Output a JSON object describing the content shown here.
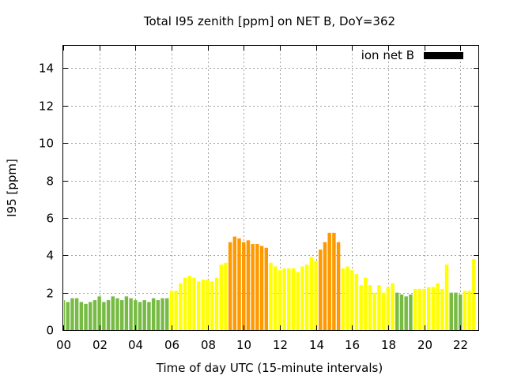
{
  "chart_data": {
    "type": "bar",
    "title": "Total I95 zenith [ppm] on NET B, DoY=362",
    "xlabel": "Time of day UTC (15-minute intervals)",
    "ylabel": "I95 [ppm]",
    "xlim": [
      0,
      23
    ],
    "ylim": [
      0,
      15.2
    ],
    "x_ticks": [
      "00",
      "02",
      "04",
      "06",
      "08",
      "10",
      "12",
      "14",
      "16",
      "18",
      "20",
      "22"
    ],
    "y_ticks": [
      "0",
      "2",
      "4",
      "6",
      "8",
      "10",
      "12",
      "14"
    ],
    "legend": {
      "label": "ion net B",
      "color": "#000000",
      "position": "top-right"
    },
    "grid": true,
    "bar_interval_hours": 0.25,
    "colors": {
      "green": "#77bb44",
      "yellow": "#ffff00",
      "orange": "#ff9900"
    },
    "series": [
      {
        "name": "ion net B",
        "values": [
          1.6,
          1.5,
          1.7,
          1.7,
          1.5,
          1.4,
          1.5,
          1.6,
          1.8,
          1.5,
          1.6,
          1.8,
          1.7,
          1.6,
          1.8,
          1.7,
          1.6,
          1.5,
          1.6,
          1.5,
          1.7,
          1.6,
          1.7,
          1.7,
          2.1,
          2.1,
          2.5,
          2.8,
          2.9,
          2.8,
          2.6,
          2.7,
          2.7,
          2.6,
          2.8,
          3.5,
          3.6,
          4.7,
          5.0,
          4.9,
          4.7,
          4.8,
          4.6,
          4.6,
          4.5,
          4.4,
          3.6,
          3.4,
          3.2,
          3.3,
          3.3,
          3.3,
          3.1,
          3.4,
          3.5,
          3.9,
          3.7,
          4.3,
          4.7,
          5.2,
          5.2,
          4.7,
          3.3,
          3.4,
          3.2,
          3.0,
          2.4,
          2.8,
          2.4,
          2.0,
          2.4,
          2.0,
          2.3,
          2.5,
          2.0,
          1.9,
          1.8,
          1.9,
          2.2,
          2.2,
          2.2,
          2.3,
          2.3,
          2.5,
          2.2,
          3.5,
          2.0,
          2.0,
          1.9,
          2.1,
          2.1,
          3.8
        ],
        "colors": [
          "green",
          "green",
          "green",
          "green",
          "green",
          "green",
          "green",
          "green",
          "green",
          "green",
          "green",
          "green",
          "green",
          "green",
          "green",
          "green",
          "green",
          "green",
          "green",
          "green",
          "green",
          "green",
          "green",
          "green",
          "yellow",
          "yellow",
          "yellow",
          "yellow",
          "yellow",
          "yellow",
          "yellow",
          "yellow",
          "yellow",
          "yellow",
          "yellow",
          "yellow",
          "yellow",
          "orange",
          "orange",
          "orange",
          "orange",
          "orange",
          "orange",
          "orange",
          "orange",
          "orange",
          "yellow",
          "yellow",
          "yellow",
          "yellow",
          "yellow",
          "yellow",
          "yellow",
          "yellow",
          "yellow",
          "yellow",
          "yellow",
          "orange",
          "orange",
          "orange",
          "orange",
          "orange",
          "yellow",
          "yellow",
          "yellow",
          "yellow",
          "yellow",
          "yellow",
          "yellow",
          "yellow",
          "yellow",
          "yellow",
          "yellow",
          "yellow",
          "green",
          "green",
          "green",
          "green",
          "yellow",
          "yellow",
          "yellow",
          "yellow",
          "yellow",
          "yellow",
          "yellow",
          "yellow",
          "green",
          "green",
          "green",
          "yellow",
          "yellow",
          "yellow"
        ]
      }
    ]
  }
}
